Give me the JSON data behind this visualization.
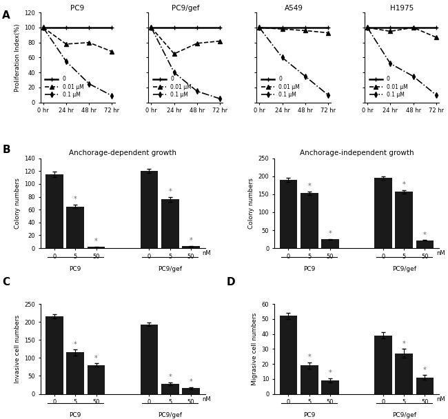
{
  "panel_A": {
    "titles": [
      "PC9",
      "PC9/gef",
      "A549",
      "H1975"
    ],
    "x": [
      0,
      24,
      48,
      72
    ],
    "xlabel_ticks": [
      "0 hr",
      "24 hr",
      "48 hr",
      "72 hr"
    ],
    "ylabel": "Proliferation Index(%)",
    "ylim": [
      0,
      120
    ],
    "yticks": [
      0,
      20,
      40,
      60,
      80,
      100,
      120
    ],
    "lines": {
      "PC9": {
        "0": [
          100,
          100,
          100,
          100
        ],
        "0.01": [
          100,
          78,
          80,
          68
        ],
        "0.1": [
          100,
          55,
          25,
          9
        ]
      },
      "PC9/gef": {
        "0": [
          100,
          100,
          100,
          100
        ],
        "0.01": [
          100,
          65,
          79,
          82
        ],
        "0.1": [
          100,
          40,
          15,
          5
        ]
      },
      "A549": {
        "0": [
          100,
          100,
          100,
          100
        ],
        "0.01": [
          100,
          98,
          96,
          93
        ],
        "0.1": [
          100,
          60,
          35,
          10
        ]
      },
      "H1975": {
        "0": [
          100,
          100,
          100,
          100
        ],
        "0.01": [
          100,
          95,
          100,
          87
        ],
        "0.1": [
          100,
          52,
          35,
          10
        ]
      }
    },
    "legend_labels": [
      "0",
      "0.01 μM",
      "0.1 μM"
    ]
  },
  "panel_B_dep": {
    "title": "Anchorage-dependent growth",
    "ylabel": "Colony numbers",
    "ylim": [
      0,
      140
    ],
    "yticks": [
      0,
      20,
      40,
      60,
      80,
      100,
      120,
      140
    ],
    "groups": [
      "PC9",
      "PC9/gef"
    ],
    "categories": [
      "0",
      "5",
      "50"
    ],
    "values": {
      "PC9": [
        115,
        65,
        2
      ],
      "PC9/gef": [
        120,
        76,
        3
      ]
    },
    "errors": {
      "PC9": [
        4,
        3,
        0.5
      ],
      "PC9/gef": [
        3,
        4,
        0.5
      ]
    },
    "sig": {
      "PC9": [
        false,
        true,
        true
      ],
      "PC9/gef": [
        false,
        true,
        true
      ]
    }
  },
  "panel_B_indep": {
    "title": "Anchorage-independent growth",
    "ylabel": "Colony numbers",
    "ylim": [
      0,
      250
    ],
    "yticks": [
      0,
      50,
      100,
      150,
      200,
      250
    ],
    "groups": [
      "PC9",
      "PC9/gef"
    ],
    "categories": [
      "0",
      "5",
      "50"
    ],
    "values": {
      "PC9": [
        190,
        153,
        25
      ],
      "PC9/gef": [
        195,
        157,
        22
      ]
    },
    "errors": {
      "PC9": [
        5,
        5,
        1
      ],
      "PC9/gef": [
        5,
        5,
        1
      ]
    },
    "sig": {
      "PC9": [
        false,
        true,
        true
      ],
      "PC9/gef": [
        false,
        true,
        true
      ]
    }
  },
  "panel_C": {
    "ylabel": "Invasive cell numbers",
    "ylim": [
      0,
      250
    ],
    "yticks": [
      0,
      50,
      100,
      150,
      200,
      250
    ],
    "groups": [
      "PC9",
      "PC9/gef"
    ],
    "categories": [
      "0",
      "5",
      "50"
    ],
    "values": {
      "PC9": [
        215,
        115,
        80
      ],
      "PC9/gef": [
        193,
        28,
        16
      ]
    },
    "errors": {
      "PC9": [
        6,
        8,
        5
      ],
      "PC9/gef": [
        5,
        4,
        3
      ]
    },
    "sig": {
      "PC9": [
        false,
        true,
        true
      ],
      "PC9/gef": [
        false,
        true,
        true
      ]
    }
  },
  "panel_D": {
    "ylabel": "Migrasive cell numbers",
    "ylim": [
      0,
      60
    ],
    "yticks": [
      0,
      10,
      20,
      30,
      40,
      50,
      60
    ],
    "groups": [
      "PC9",
      "PC9/gef"
    ],
    "categories": [
      "0",
      "5",
      "50"
    ],
    "values": {
      "PC9": [
        52,
        19,
        9
      ],
      "PC9/gef": [
        39,
        27,
        11
      ]
    },
    "errors": {
      "PC9": [
        2,
        2,
        1.5
      ],
      "PC9/gef": [
        2,
        3,
        1.5
      ]
    },
    "sig": {
      "PC9": [
        false,
        true,
        true
      ],
      "PC9/gef": [
        false,
        true,
        true
      ]
    }
  },
  "bar_color": "#1a1a1a",
  "line_styles": {
    "0": {
      "linestyle": "-",
      "linewidth": 1.8,
      "marker": "+",
      "markersize": 5
    },
    "0.01": {
      "linestyle": "--",
      "linewidth": 1.2,
      "marker": "^",
      "markersize": 4
    },
    "0.1": {
      "linestyle": "-.",
      "linewidth": 1.2,
      "marker": "d",
      "markersize": 4
    }
  }
}
